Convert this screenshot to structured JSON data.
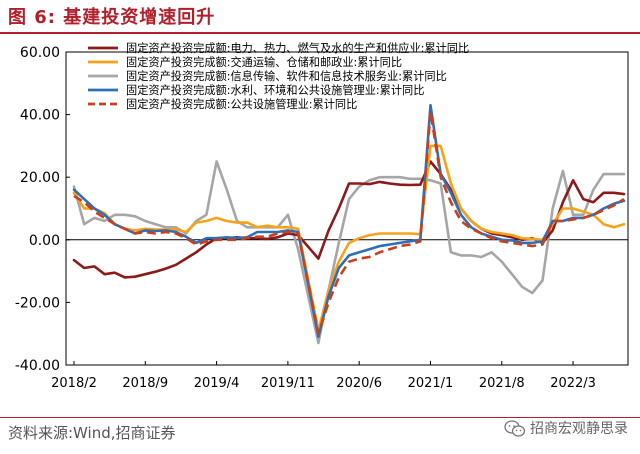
{
  "figure": {
    "title": "图 6:  基建投资增速回升",
    "source": "资料来源:Wind,招商证券",
    "watermark": "招商宏观静思录",
    "watermark_icon": "wechat-icon"
  },
  "chart_data": {
    "type": "line",
    "xlabel": "",
    "ylabel": "",
    "ylim": [
      -40,
      60
    ],
    "yticks": [
      "60.00",
      "40.00",
      "20.00",
      "0.00",
      "-20.00",
      "-40.00"
    ],
    "ytick_values": [
      60,
      40,
      20,
      0,
      -20,
      -40
    ],
    "xticks": [
      "2018/2",
      "2018/9",
      "2019/4",
      "2019/11",
      "2020/6",
      "2021/1",
      "2021/8",
      "2022/3"
    ],
    "xtick_index": [
      0,
      7,
      14,
      21,
      28,
      35,
      42,
      49
    ],
    "x": [
      "2018/2",
      "2018/3",
      "2018/4",
      "2018/5",
      "2018/6",
      "2018/7",
      "2018/8",
      "2018/9",
      "2018/10",
      "2018/11",
      "2018/12",
      "2019/1",
      "2019/2",
      "2019/3",
      "2019/4",
      "2019/5",
      "2019/6",
      "2019/7",
      "2019/8",
      "2019/9",
      "2019/10",
      "2019/11",
      "2019/12",
      "2020/1",
      "2020/2",
      "2020/3",
      "2020/4",
      "2020/5",
      "2020/6",
      "2020/7",
      "2020/8",
      "2020/9",
      "2020/10",
      "2020/11",
      "2020/12",
      "2021/1",
      "2021/2",
      "2021/3",
      "2021/4",
      "2021/5",
      "2021/6",
      "2021/7",
      "2021/8",
      "2021/9",
      "2021/10",
      "2021/11",
      "2021/12",
      "2022/1",
      "2022/2",
      "2022/3",
      "2022/4",
      "2022/5",
      "2022/6",
      "2022/7",
      "2022/8"
    ],
    "grid": false,
    "legend_position": "top",
    "series": [
      {
        "name": "固定资产投资完成额:电力、热力、燃气及水的生产和供应业:累计同比",
        "color": "#8b1a1a",
        "dash": "solid",
        "values": [
          -6.5,
          -9,
          -8.5,
          -11,
          -10.5,
          -12,
          -11.8,
          -11,
          -10.2,
          -9.2,
          -8,
          -6,
          -4,
          -1.5,
          0.5,
          0.5,
          0.8,
          0.5,
          0.5,
          0.3,
          0.8,
          2,
          1.5,
          null,
          -6,
          3,
          10,
          18,
          18,
          17.8,
          18.5,
          18,
          17.6,
          17.5,
          17.6,
          25,
          21,
          16,
          10,
          6,
          3.5,
          2,
          1.5,
          0.8,
          0,
          0.5,
          -1,
          3,
          12,
          19,
          13,
          12,
          15,
          15,
          14.6
        ]
      },
      {
        "name": "固定资产投资完成额:交通运输、仓储和邮政业:累计同比",
        "color": "#f5a31a",
        "dash": "solid",
        "values": [
          15,
          10,
          10,
          8.5,
          5,
          3.5,
          3,
          3.5,
          3.3,
          3.3,
          3.3,
          2.5,
          5.5,
          6,
          7,
          6,
          5.5,
          5.5,
          4,
          4.5,
          4,
          4,
          3.5,
          null,
          -29,
          -16,
          -7,
          -1,
          0.5,
          1.5,
          2,
          2,
          2,
          2,
          1.8,
          30,
          30,
          18,
          10,
          6,
          3.5,
          2.5,
          2,
          1.5,
          0.5,
          0.3,
          0,
          5,
          10,
          10,
          9,
          8,
          5,
          4,
          5
        ]
      },
      {
        "name": "固定资产投资完成额:信息传输、软件和信息技术服务业:累计同比",
        "color": "#a6a6a6",
        "dash": "solid",
        "values": [
          17,
          5,
          7,
          6,
          8,
          8,
          7.5,
          6,
          5,
          4,
          4,
          2,
          6,
          8,
          25,
          16,
          6,
          4,
          4,
          4,
          4,
          8,
          -3,
          null,
          -33,
          -16,
          -1,
          13,
          17,
          19,
          20,
          20,
          20,
          19.5,
          19.5,
          19,
          18,
          -4,
          -5,
          -5,
          -5.5,
          -4,
          -7,
          -11,
          -15,
          -17,
          -13,
          10,
          22,
          8,
          8,
          16,
          21,
          21,
          21
        ]
      },
      {
        "name": "固定资产投资完成额:水利、环境和公共设施管理业:累计同比",
        "color": "#2e6fb8",
        "dash": "solid",
        "values": [
          16,
          13,
          10,
          8,
          5,
          3.5,
          2,
          3,
          2.8,
          3,
          2.5,
          1,
          -1,
          0.5,
          0.5,
          0.8,
          0.5,
          0.8,
          2.5,
          2.5,
          2.5,
          3,
          2.5,
          null,
          -31,
          -18,
          -9,
          -5,
          -4,
          -3,
          -2,
          -1.5,
          -1,
          -0.5,
          0,
          43,
          21,
          15,
          8,
          4,
          2,
          1,
          0,
          -0.2,
          -1,
          -1,
          -0.5,
          6,
          6,
          7,
          7,
          8,
          10,
          11.5,
          12.5
        ]
      },
      {
        "name": "固定资产投资完成额:公共设施管理业:累计同比",
        "color": "#c8401c",
        "dash": "dashed",
        "values": [
          14,
          12,
          9,
          7,
          5,
          3.5,
          2,
          2.5,
          2,
          2.5,
          2,
          0.5,
          -1.5,
          -0.5,
          0,
          0,
          0,
          0.5,
          1,
          1,
          2,
          2.5,
          2,
          null,
          -30,
          -20,
          -12,
          -7,
          -6,
          -5.5,
          -4,
          -3,
          -2,
          -1.5,
          -0.5,
          41,
          20,
          12,
          6,
          3.5,
          2,
          0.5,
          -0.5,
          -1,
          -1.5,
          -2,
          -1.5,
          6,
          6,
          6.5,
          7,
          8,
          9.5,
          11,
          13
        ]
      }
    ]
  }
}
